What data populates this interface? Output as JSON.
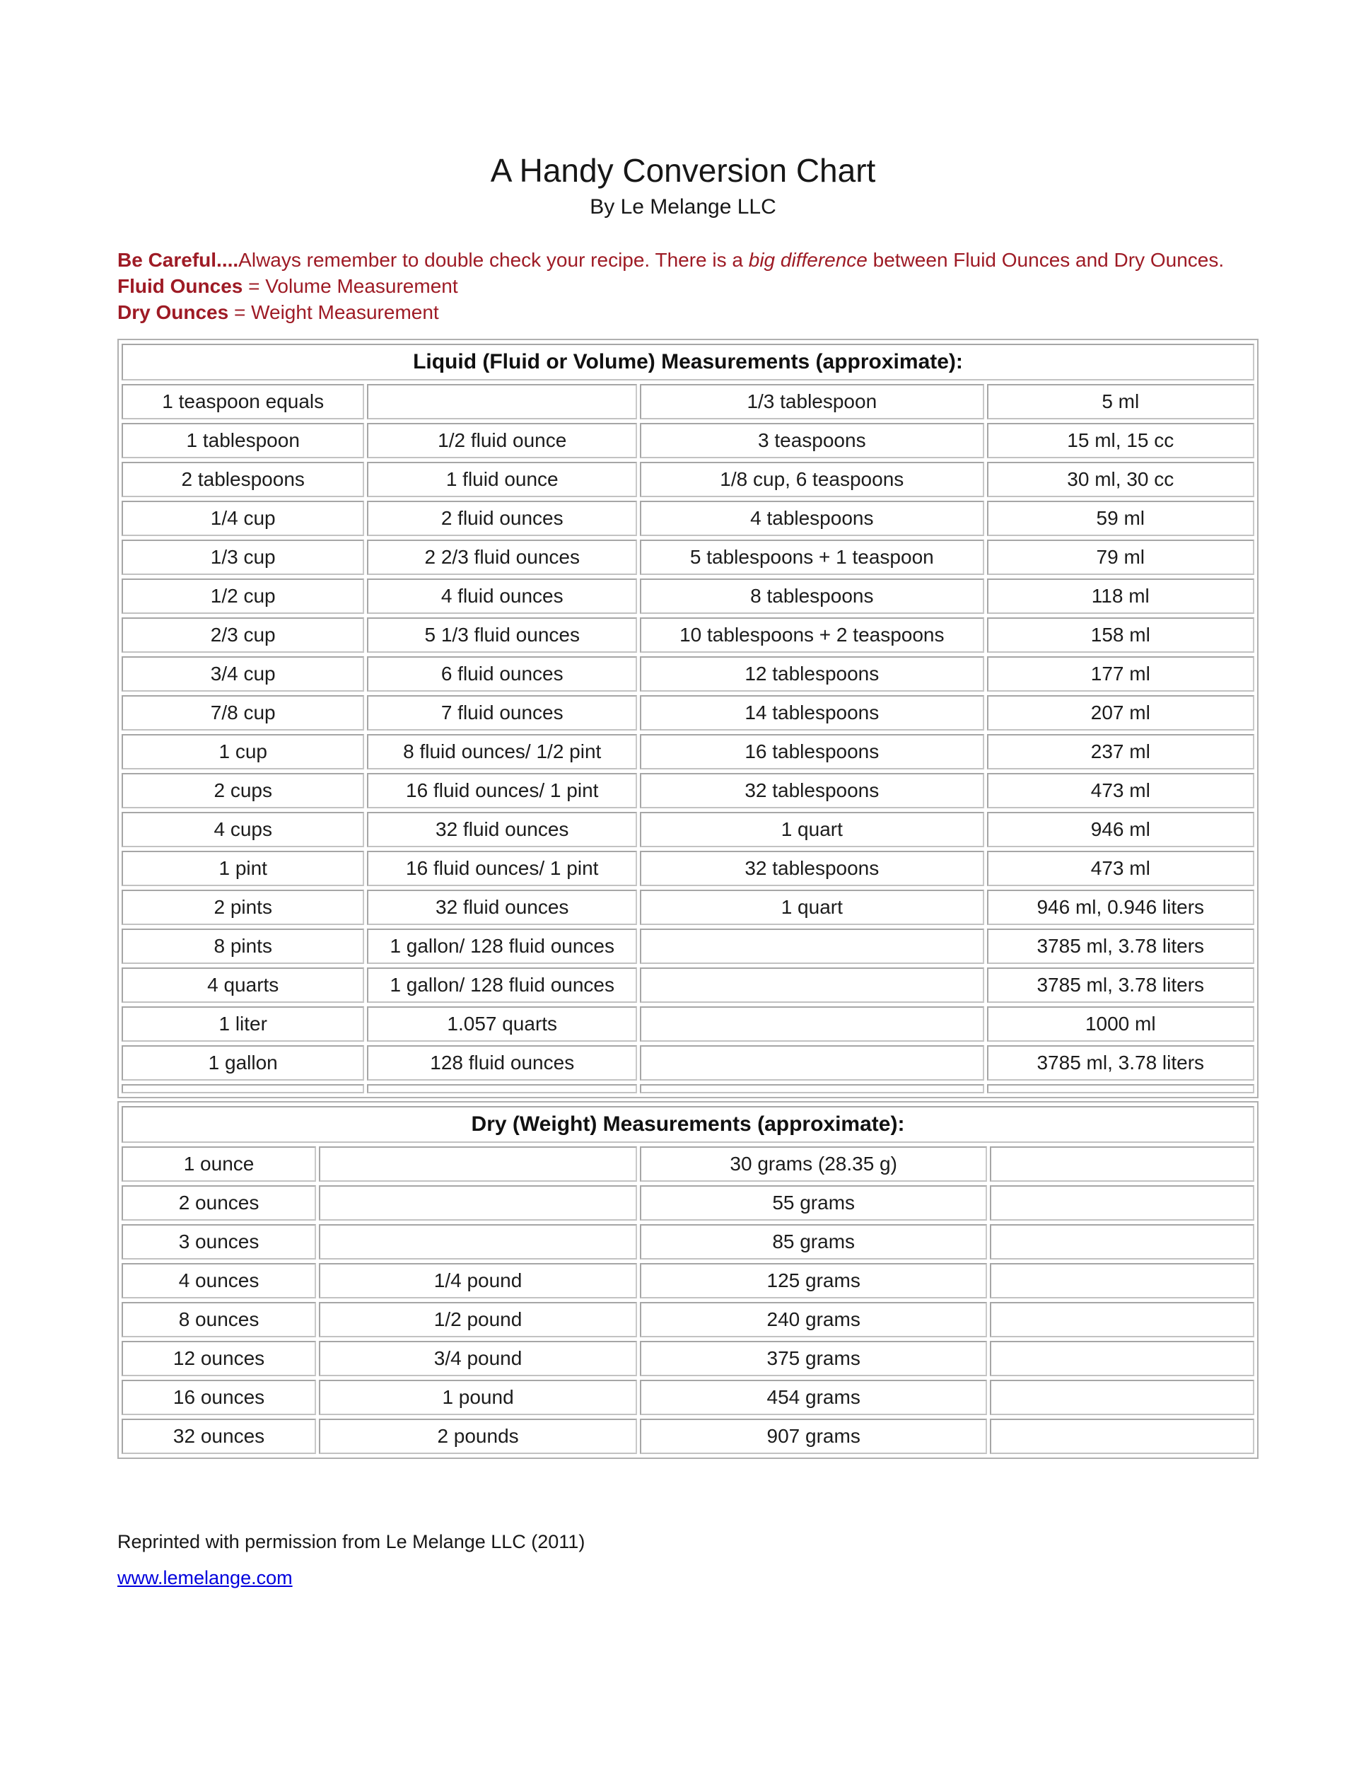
{
  "page": {
    "title": "A Handy Conversion Chart",
    "subtitle": "By Le Melange LLC"
  },
  "warning": {
    "color": "#9e1b25",
    "line1_bold": "Be Careful....",
    "line1_pre_italic": "Always remember to double check your recipe. There is a ",
    "line1_italic": "big difference",
    "line1_post_italic": " between Fluid Ounces and Dry Ounces.",
    "line2_bold": "Fluid Ounces",
    "line2_rest": " = Volume Measurement",
    "line3_bold": "Dry Ounces",
    "line3_rest": " = Weight Measurement"
  },
  "liquid_table": {
    "header": "Liquid (Fluid or Volume) Measurements (approximate):",
    "rows": [
      [
        "1 teaspoon equals",
        "",
        "1/3 tablespoon",
        "5 ml"
      ],
      [
        "1 tablespoon",
        "1/2 fluid ounce",
        "3 teaspoons",
        "15 ml, 15 cc"
      ],
      [
        "2 tablespoons",
        "1 fluid ounce",
        "1/8 cup, 6 teaspoons",
        "30 ml, 30 cc"
      ],
      [
        "1/4 cup",
        "2 fluid ounces",
        "4 tablespoons",
        "59 ml"
      ],
      [
        "1/3 cup",
        "2 2/3 fluid ounces",
        "5 tablespoons + 1 teaspoon",
        "79 ml"
      ],
      [
        "1/2 cup",
        "4 fluid ounces",
        "8 tablespoons",
        "118 ml"
      ],
      [
        "2/3 cup",
        "5 1/3 fluid ounces",
        "10 tablespoons + 2 teaspoons",
        "158 ml"
      ],
      [
        "3/4 cup",
        "6 fluid ounces",
        "12 tablespoons",
        "177 ml"
      ],
      [
        "7/8 cup",
        "7 fluid ounces",
        "14 tablespoons",
        "207 ml"
      ],
      [
        "1 cup",
        "8 fluid ounces/ 1/2 pint",
        "16 tablespoons",
        "237 ml"
      ],
      [
        "2 cups",
        "16 fluid ounces/ 1 pint",
        "32 tablespoons",
        "473 ml"
      ],
      [
        "4 cups",
        "32 fluid ounces",
        "1 quart",
        "946 ml"
      ],
      [
        "1 pint",
        "16 fluid ounces/ 1 pint",
        "32 tablespoons",
        "473 ml"
      ],
      [
        "2 pints",
        "32 fluid ounces",
        "1 quart",
        "946 ml, 0.946 liters"
      ],
      [
        "8 pints",
        "1 gallon/ 128 fluid ounces",
        "",
        "3785 ml, 3.78 liters"
      ],
      [
        "4 quarts",
        "1 gallon/ 128 fluid ounces",
        "",
        "3785 ml, 3.78 liters"
      ],
      [
        "1 liter",
        "1.057 quarts",
        "",
        "1000 ml"
      ],
      [
        "1 gallon",
        "128 fluid ounces",
        "",
        "3785 ml, 3.78 liters"
      ]
    ]
  },
  "dry_table": {
    "header": "Dry (Weight) Measurements (approximate):",
    "rows": [
      [
        "1 ounce",
        "",
        "30 grams (28.35 g)",
        ""
      ],
      [
        "2 ounces",
        "",
        "55 grams",
        ""
      ],
      [
        "3 ounces",
        "",
        "85 grams",
        ""
      ],
      [
        "4 ounces",
        "1/4 pound",
        "125 grams",
        ""
      ],
      [
        "8 ounces",
        "1/2 pound",
        "240 grams",
        ""
      ],
      [
        "12 ounces",
        "3/4 pound",
        "375 grams",
        ""
      ],
      [
        "16 ounces",
        "1 pound",
        "454 grams",
        ""
      ],
      [
        "32 ounces",
        "2 pounds",
        "907 grams",
        ""
      ]
    ]
  },
  "footer": {
    "text": "Reprinted with permission from Le Melange LLC (2011)",
    "link": "www.lemelange.com",
    "link_color": "#0000dd"
  }
}
